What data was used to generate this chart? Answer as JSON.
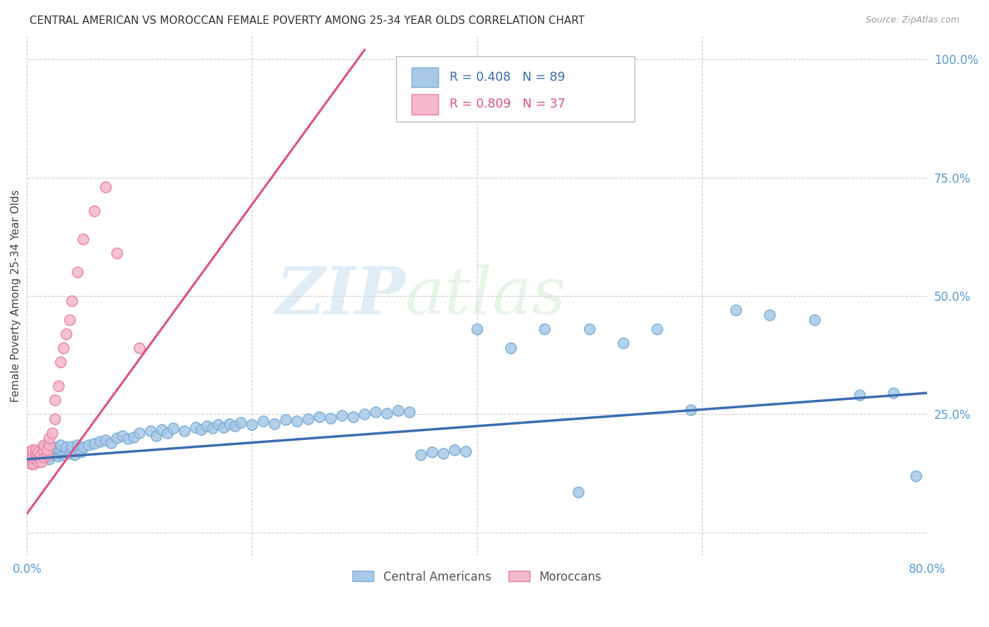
{
  "title": "CENTRAL AMERICAN VS MOROCCAN FEMALE POVERTY AMONG 25-34 YEAR OLDS CORRELATION CHART",
  "source": "Source: ZipAtlas.com",
  "ylabel": "Female Poverty Among 25-34 Year Olds",
  "xlim": [
    0.0,
    0.8
  ],
  "ylim": [
    -0.05,
    1.05
  ],
  "blue_color": "#a8c8e8",
  "blue_edge_color": "#7bafd4",
  "pink_color": "#f4b8cc",
  "pink_edge_color": "#e882a4",
  "blue_line_color": "#3c6db0",
  "pink_line_color": "#e05080",
  "r_blue": 0.408,
  "n_blue": 89,
  "r_pink": 0.809,
  "n_pink": 37,
  "watermark_zip": "ZIP",
  "watermark_atlas": "atlas",
  "legend_label_blue": "Central Americans",
  "legend_label_pink": "Moroccans",
  "blue_line_x": [
    0.0,
    0.8
  ],
  "blue_line_y": [
    0.155,
    0.295
  ],
  "pink_line_x": [
    0.0,
    0.3
  ],
  "pink_line_y": [
    0.04,
    1.02
  ],
  "blue_scatter_x": [
    0.005,
    0.008,
    0.01,
    0.012,
    0.015,
    0.015,
    0.018,
    0.018,
    0.02,
    0.02,
    0.022,
    0.022,
    0.025,
    0.025,
    0.025,
    0.028,
    0.03,
    0.03,
    0.03,
    0.032,
    0.035,
    0.035,
    0.038,
    0.04,
    0.04,
    0.042,
    0.045,
    0.045,
    0.048,
    0.05,
    0.055,
    0.06,
    0.065,
    0.07,
    0.075,
    0.08,
    0.085,
    0.09,
    0.095,
    0.1,
    0.11,
    0.115,
    0.12,
    0.125,
    0.13,
    0.14,
    0.15,
    0.155,
    0.16,
    0.165,
    0.17,
    0.175,
    0.18,
    0.185,
    0.19,
    0.2,
    0.21,
    0.22,
    0.23,
    0.24,
    0.25,
    0.26,
    0.27,
    0.28,
    0.29,
    0.3,
    0.31,
    0.32,
    0.33,
    0.34,
    0.35,
    0.36,
    0.37,
    0.38,
    0.39,
    0.4,
    0.43,
    0.46,
    0.49,
    0.5,
    0.53,
    0.56,
    0.59,
    0.63,
    0.66,
    0.7,
    0.74,
    0.77,
    0.79
  ],
  "blue_scatter_y": [
    0.17,
    0.155,
    0.16,
    0.175,
    0.165,
    0.18,
    0.17,
    0.16,
    0.175,
    0.155,
    0.168,
    0.172,
    0.165,
    0.17,
    0.18,
    0.162,
    0.168,
    0.175,
    0.185,
    0.165,
    0.172,
    0.18,
    0.168,
    0.175,
    0.182,
    0.165,
    0.178,
    0.185,
    0.17,
    0.18,
    0.185,
    0.188,
    0.192,
    0.195,
    0.19,
    0.2,
    0.205,
    0.198,
    0.202,
    0.21,
    0.215,
    0.205,
    0.218,
    0.21,
    0.22,
    0.215,
    0.222,
    0.218,
    0.225,
    0.22,
    0.228,
    0.222,
    0.23,
    0.225,
    0.232,
    0.228,
    0.235,
    0.23,
    0.238,
    0.235,
    0.24,
    0.245,
    0.242,
    0.248,
    0.245,
    0.25,
    0.255,
    0.252,
    0.258,
    0.255,
    0.165,
    0.17,
    0.168,
    0.175,
    0.172,
    0.43,
    0.39,
    0.43,
    0.085,
    0.43,
    0.4,
    0.43,
    0.26,
    0.47,
    0.46,
    0.45,
    0.29,
    0.295,
    0.12
  ],
  "pink_scatter_x": [
    0.002,
    0.003,
    0.004,
    0.005,
    0.005,
    0.006,
    0.007,
    0.008,
    0.008,
    0.01,
    0.01,
    0.01,
    0.012,
    0.012,
    0.013,
    0.015,
    0.015,
    0.015,
    0.018,
    0.018,
    0.02,
    0.02,
    0.022,
    0.025,
    0.025,
    0.028,
    0.03,
    0.032,
    0.035,
    0.038,
    0.04,
    0.045,
    0.05,
    0.06,
    0.07,
    0.08,
    0.1
  ],
  "pink_scatter_y": [
    0.17,
    0.155,
    0.145,
    0.16,
    0.175,
    0.145,
    0.155,
    0.165,
    0.175,
    0.15,
    0.16,
    0.17,
    0.155,
    0.165,
    0.15,
    0.16,
    0.175,
    0.185,
    0.165,
    0.175,
    0.185,
    0.2,
    0.21,
    0.24,
    0.28,
    0.31,
    0.36,
    0.39,
    0.42,
    0.45,
    0.49,
    0.55,
    0.62,
    0.68,
    0.73,
    0.59,
    0.39
  ]
}
